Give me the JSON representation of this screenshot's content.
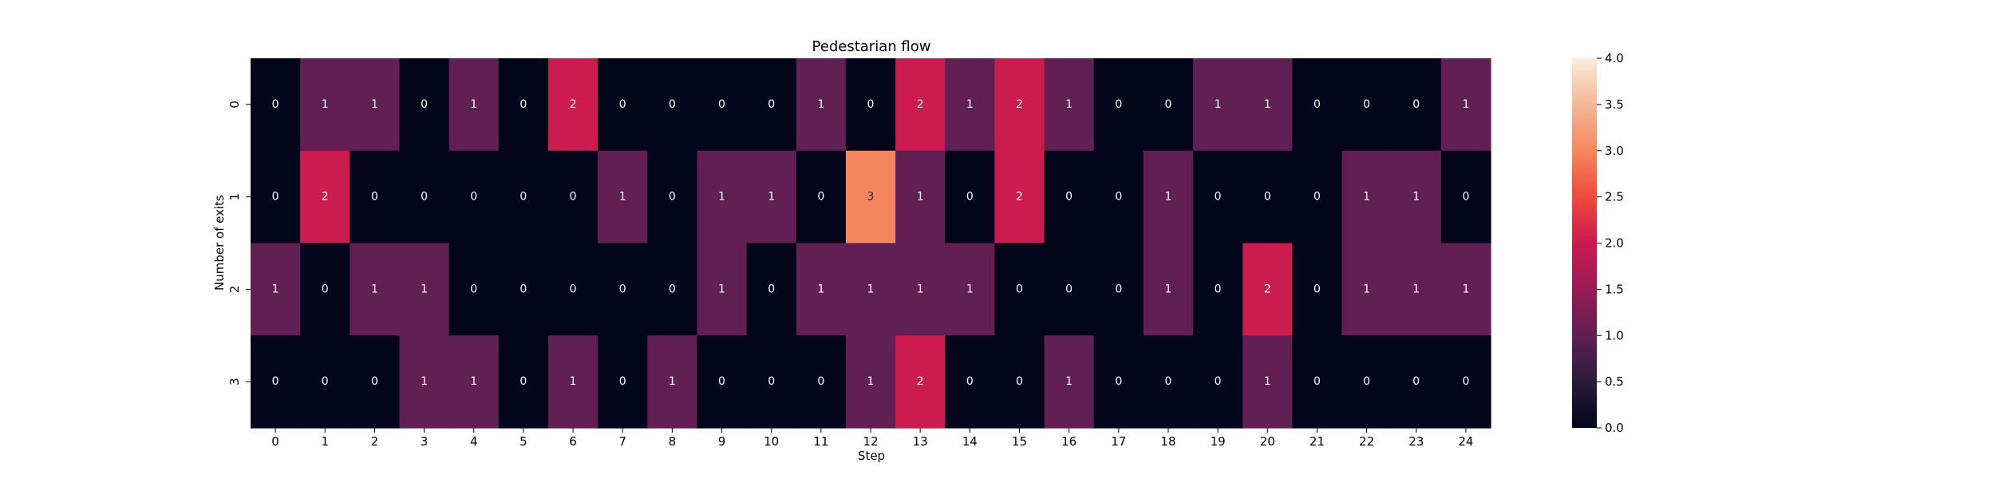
{
  "chart_data": {
    "type": "heatmap",
    "title": "Pedestarian flow",
    "xlabel": "Step",
    "ylabel": "Number of exits",
    "x_categories": [
      "0",
      "1",
      "2",
      "3",
      "4",
      "5",
      "6",
      "7",
      "8",
      "9",
      "10",
      "11",
      "12",
      "13",
      "14",
      "15",
      "16",
      "17",
      "18",
      "19",
      "20",
      "21",
      "22",
      "23",
      "24"
    ],
    "y_categories": [
      "0",
      "1",
      "2",
      "3"
    ],
    "values": [
      [
        0,
        1,
        1,
        0,
        1,
        0,
        2,
        0,
        0,
        0,
        0,
        1,
        0,
        2,
        1,
        2,
        1,
        0,
        0,
        1,
        1,
        0,
        0,
        0,
        1
      ],
      [
        0,
        2,
        0,
        0,
        0,
        0,
        0,
        1,
        0,
        1,
        1,
        0,
        3,
        1,
        0,
        2,
        0,
        0,
        1,
        0,
        0,
        0,
        1,
        1,
        0
      ],
      [
        1,
        0,
        1,
        1,
        0,
        0,
        0,
        0,
        0,
        1,
        0,
        1,
        1,
        1,
        1,
        0,
        0,
        0,
        1,
        0,
        2,
        0,
        1,
        1,
        1
      ],
      [
        0,
        0,
        0,
        1,
        1,
        0,
        1,
        0,
        1,
        0,
        0,
        0,
        1,
        2,
        0,
        0,
        1,
        0,
        0,
        0,
        1,
        0,
        0,
        0,
        0
      ]
    ],
    "vmin": 0,
    "vmax": 4,
    "colorbar_ticks": [
      "0.0",
      "0.5",
      "1.0",
      "1.5",
      "2.0",
      "2.5",
      "3.0",
      "3.5",
      "4.0"
    ],
    "colormap": "rocket",
    "annotated": true
  }
}
